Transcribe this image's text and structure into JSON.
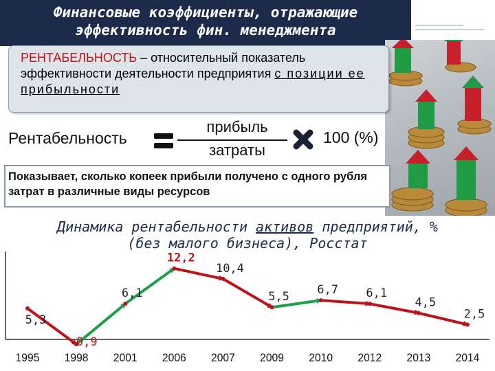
{
  "header": {
    "title_line1": "Финансовые коэффициенты, отражающие",
    "title_line2": "эффективность фин. менеджмента"
  },
  "definition": {
    "term": "РЕНТАБЕЛЬНОСТЬ",
    "text_a": " – относительный показатель эффективности деятельности предприятия ",
    "text_b": "с позиции ее прибыльности"
  },
  "formula": {
    "label": "Рентабельность",
    "numerator": "прибыль",
    "denominator": "затраты",
    "multiplier": "100",
    "unit": "(%)"
  },
  "explanation": "Показывает, сколько копеек прибыли получено с одного рубля затрат в различные виды ресурсов",
  "chart_title": {
    "part1": "Динамика рентабельности ",
    "underlined": "активов",
    "part2": " предприятий, %",
    "line2": "(без малого бизнеса), Росстат"
  },
  "colors": {
    "decline": "#c0121b",
    "growth": "#1aa14a",
    "title_bg": "#1c2b4a"
  },
  "chart_data": {
    "type": "line",
    "categories": [
      "1995",
      "1998",
      "2001",
      "2006",
      "2007",
      "2009",
      "2010",
      "2012",
      "2013",
      "2014"
    ],
    "series": [
      {
        "values": [
          5.3,
          -0.9,
          6.1,
          12.2,
          10.4,
          5.5,
          6.7,
          6.1,
          4.5,
          2.5
        ],
        "labels": [
          "5,3",
          "-0,9",
          "6,1",
          "12,2",
          "10,4",
          "5,5",
          "6,7",
          "6,1",
          "4,5",
          "2,5"
        ],
        "segment_colors": [
          "decline",
          "growth",
          "growth",
          "decline",
          "decline",
          "growth",
          "decline",
          "decline",
          "decline"
        ]
      }
    ],
    "ylim": [
      -1,
      13
    ],
    "grid": false,
    "legend": "none"
  }
}
